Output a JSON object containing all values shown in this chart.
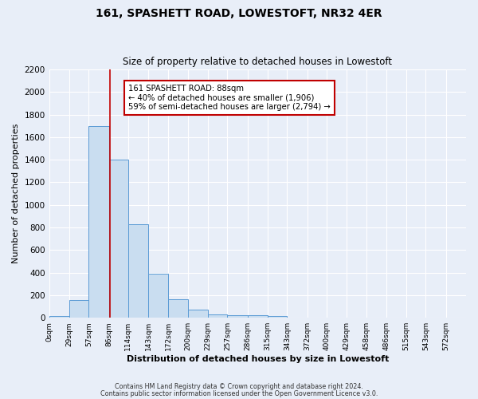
{
  "title1": "161, SPASHETT ROAD, LOWESTOFT, NR32 4ER",
  "title2": "Size of property relative to detached houses in Lowestoft",
  "xlabel": "Distribution of detached houses by size in Lowestoft",
  "ylabel": "Number of detached properties",
  "bar_left_edges": [
    0,
    29,
    57,
    86,
    114,
    143,
    172,
    200,
    229,
    257,
    286,
    315,
    343,
    372,
    400,
    429,
    458,
    486,
    515,
    543
  ],
  "bar_widths": [
    29,
    28,
    29,
    28,
    29,
    29,
    28,
    29,
    28,
    29,
    29,
    28,
    29,
    28,
    29,
    29,
    28,
    29,
    28,
    29
  ],
  "bar_heights": [
    15,
    155,
    1700,
    1400,
    830,
    390,
    165,
    70,
    30,
    20,
    25,
    15,
    5,
    5,
    5,
    5,
    5,
    5,
    5,
    5
  ],
  "bar_color": "#c9ddf0",
  "bar_edge_color": "#5b9bd5",
  "tick_labels": [
    "0sqm",
    "29sqm",
    "57sqm",
    "86sqm",
    "114sqm",
    "143sqm",
    "172sqm",
    "200sqm",
    "229sqm",
    "257sqm",
    "286sqm",
    "315sqm",
    "343sqm",
    "372sqm",
    "400sqm",
    "429sqm",
    "458sqm",
    "486sqm",
    "515sqm",
    "543sqm",
    "572sqm"
  ],
  "ylim": [
    0,
    2200
  ],
  "yticks": [
    0,
    200,
    400,
    600,
    800,
    1000,
    1200,
    1400,
    1600,
    1800,
    2000,
    2200
  ],
  "vline_x": 88,
  "vline_color": "#c00000",
  "annotation_title": "161 SPASHETT ROAD: 88sqm",
  "annotation_line1": "← 40% of detached houses are smaller (1,906)",
  "annotation_line2": "59% of semi-detached houses are larger (2,794) →",
  "annotation_box_color": "#ffffff",
  "annotation_box_edge": "#c00000",
  "background_color": "#e8eef8",
  "plot_bg_color": "#e8eef8",
  "footer1": "Contains HM Land Registry data © Crown copyright and database right 2024.",
  "footer2": "Contains public sector information licensed under the Open Government Licence v3.0.",
  "grid_color": "#ffffff"
}
